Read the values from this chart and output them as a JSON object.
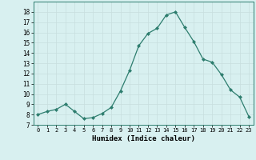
{
  "x": [
    0,
    1,
    2,
    3,
    4,
    5,
    6,
    7,
    8,
    9,
    10,
    11,
    12,
    13,
    14,
    15,
    16,
    17,
    18,
    19,
    20,
    21,
    22,
    23
  ],
  "y": [
    8.0,
    8.3,
    8.5,
    9.0,
    8.3,
    7.6,
    7.7,
    8.1,
    8.7,
    10.3,
    12.3,
    14.7,
    15.9,
    16.4,
    17.7,
    18.0,
    16.5,
    15.1,
    13.4,
    13.1,
    11.9,
    10.4,
    9.7,
    7.8
  ],
  "xlabel": "Humidex (Indice chaleur)",
  "ylim": [
    7,
    19
  ],
  "yticks": [
    7,
    8,
    9,
    10,
    11,
    12,
    13,
    14,
    15,
    16,
    17,
    18
  ],
  "xtick_labels": [
    "0",
    "1",
    "2",
    "3",
    "4",
    "5",
    "6",
    "7",
    "8",
    "9",
    "10",
    "11",
    "12",
    "13",
    "14",
    "15",
    "16",
    "17",
    "18",
    "19",
    "20",
    "21",
    "22",
    "23"
  ],
  "line_color": "#2d7d6e",
  "marker": "D",
  "marker_size": 2.0,
  "bg_color": "#d8f0f0",
  "grid_color": "#c8dede",
  "title": ""
}
